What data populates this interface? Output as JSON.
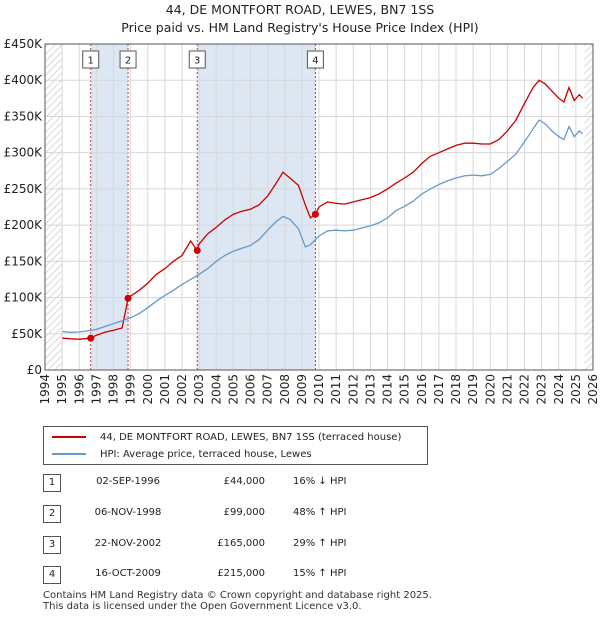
{
  "title_line1": "44, DE MONTFORT ROAD, LEWES, BN7 1SS",
  "title_line2": "Price paid vs. HM Land Registry's House Price Index (HPI)",
  "chart_data": {
    "type": "line",
    "xlim": [
      1994,
      2026
    ],
    "ylim": [
      0,
      450000
    ],
    "x_ticks": [
      "1994",
      "1995",
      "1996",
      "1997",
      "1998",
      "1999",
      "2000",
      "2001",
      "2002",
      "2003",
      "2004",
      "2005",
      "2006",
      "2007",
      "2008",
      "2009",
      "2010",
      "2011",
      "2012",
      "2013",
      "2014",
      "2015",
      "2016",
      "2017",
      "2018",
      "2019",
      "2020",
      "2021",
      "2022",
      "2023",
      "2024",
      "2025",
      "2026"
    ],
    "y_ticks": [
      {
        "value": 0,
        "label": "£0"
      },
      {
        "value": 50000,
        "label": "£50K"
      },
      {
        "value": 100000,
        "label": "£100K"
      },
      {
        "value": 150000,
        "label": "£150K"
      },
      {
        "value": 200000,
        "label": "£200K"
      },
      {
        "value": 250000,
        "label": "£250K"
      },
      {
        "value": 300000,
        "label": "£300K"
      },
      {
        "value": 350000,
        "label": "£350K"
      },
      {
        "value": 400000,
        "label": "£400K"
      },
      {
        "value": 450000,
        "label": "£450K"
      }
    ],
    "shaded_spans": [
      [
        1996.67,
        1998.85
      ],
      [
        2002.89,
        2009.79
      ]
    ],
    "hatched_before": 1995.0,
    "hatched_after": 2025.5,
    "series": [
      {
        "name": "44, DE MONTFORT ROAD, LEWES, BN7 1SS (terraced house)",
        "color": "#cc0000",
        "points": [
          [
            1995.0,
            44000
          ],
          [
            1995.5,
            43000
          ],
          [
            1996.0,
            42500
          ],
          [
            1996.67,
            44000
          ],
          [
            1997.0,
            48000
          ],
          [
            1997.5,
            52000
          ],
          [
            1998.0,
            55000
          ],
          [
            1998.5,
            58000
          ],
          [
            1998.85,
            99000
          ],
          [
            1999.0,
            102000
          ],
          [
            1999.5,
            110000
          ],
          [
            2000.0,
            120000
          ],
          [
            2000.5,
            132000
          ],
          [
            2001.0,
            140000
          ],
          [
            2001.5,
            150000
          ],
          [
            2002.0,
            158000
          ],
          [
            2002.5,
            178000
          ],
          [
            2002.89,
            165000
          ],
          [
            2003.0,
            174000
          ],
          [
            2003.5,
            188000
          ],
          [
            2004.0,
            197000
          ],
          [
            2004.5,
            207000
          ],
          [
            2005.0,
            215000
          ],
          [
            2005.5,
            219000
          ],
          [
            2006.0,
            222000
          ],
          [
            2006.5,
            228000
          ],
          [
            2007.0,
            240000
          ],
          [
            2007.5,
            258000
          ],
          [
            2007.9,
            273000
          ],
          [
            2008.3,
            265000
          ],
          [
            2008.8,
            255000
          ],
          [
            2009.2,
            228000
          ],
          [
            2009.5,
            210000
          ],
          [
            2009.79,
            215000
          ],
          [
            2010.0,
            225000
          ],
          [
            2010.5,
            232000
          ],
          [
            2011.0,
            230000
          ],
          [
            2011.5,
            229000
          ],
          [
            2012.0,
            232000
          ],
          [
            2012.5,
            235000
          ],
          [
            2013.0,
            238000
          ],
          [
            2013.5,
            243000
          ],
          [
            2014.0,
            250000
          ],
          [
            2014.5,
            258000
          ],
          [
            2015.0,
            265000
          ],
          [
            2015.5,
            273000
          ],
          [
            2016.0,
            285000
          ],
          [
            2016.5,
            295000
          ],
          [
            2017.0,
            300000
          ],
          [
            2017.5,
            305000
          ],
          [
            2018.0,
            310000
          ],
          [
            2018.5,
            313000
          ],
          [
            2019.0,
            313000
          ],
          [
            2019.5,
            312000
          ],
          [
            2020.0,
            312000
          ],
          [
            2020.5,
            318000
          ],
          [
            2021.0,
            330000
          ],
          [
            2021.5,
            345000
          ],
          [
            2022.0,
            368000
          ],
          [
            2022.5,
            390000
          ],
          [
            2022.85,
            400000
          ],
          [
            2023.2,
            395000
          ],
          [
            2023.6,
            385000
          ],
          [
            2024.0,
            375000
          ],
          [
            2024.3,
            370000
          ],
          [
            2024.6,
            390000
          ],
          [
            2024.9,
            372000
          ],
          [
            2025.2,
            380000
          ],
          [
            2025.4,
            375000
          ]
        ]
      },
      {
        "name": "HPI: Average price, terraced house, Lewes",
        "color": "#6699cc",
        "points": [
          [
            1995.0,
            53000
          ],
          [
            1995.5,
            52000
          ],
          [
            1996.0,
            52500
          ],
          [
            1996.5,
            54000
          ],
          [
            1997.0,
            56000
          ],
          [
            1997.5,
            60000
          ],
          [
            1998.0,
            64000
          ],
          [
            1998.5,
            68000
          ],
          [
            1999.0,
            72000
          ],
          [
            1999.5,
            78000
          ],
          [
            2000.0,
            86000
          ],
          [
            2000.5,
            95000
          ],
          [
            2001.0,
            103000
          ],
          [
            2001.5,
            110000
          ],
          [
            2002.0,
            118000
          ],
          [
            2002.5,
            125000
          ],
          [
            2003.0,
            132000
          ],
          [
            2003.5,
            140000
          ],
          [
            2004.0,
            150000
          ],
          [
            2004.5,
            158000
          ],
          [
            2005.0,
            164000
          ],
          [
            2005.5,
            168000
          ],
          [
            2006.0,
            172000
          ],
          [
            2006.5,
            180000
          ],
          [
            2007.0,
            193000
          ],
          [
            2007.5,
            205000
          ],
          [
            2007.9,
            212000
          ],
          [
            2008.3,
            208000
          ],
          [
            2008.8,
            195000
          ],
          [
            2009.2,
            170000
          ],
          [
            2009.5,
            173000
          ],
          [
            2010.0,
            185000
          ],
          [
            2010.5,
            192000
          ],
          [
            2011.0,
            193000
          ],
          [
            2011.5,
            192000
          ],
          [
            2012.0,
            193000
          ],
          [
            2012.5,
            196000
          ],
          [
            2013.0,
            199000
          ],
          [
            2013.5,
            203000
          ],
          [
            2014.0,
            210000
          ],
          [
            2014.5,
            220000
          ],
          [
            2015.0,
            226000
          ],
          [
            2015.5,
            233000
          ],
          [
            2016.0,
            243000
          ],
          [
            2016.5,
            250000
          ],
          [
            2017.0,
            256000
          ],
          [
            2017.5,
            261000
          ],
          [
            2018.0,
            265000
          ],
          [
            2018.5,
            268000
          ],
          [
            2019.0,
            269000
          ],
          [
            2019.5,
            268000
          ],
          [
            2020.0,
            270000
          ],
          [
            2020.5,
            278000
          ],
          [
            2021.0,
            288000
          ],
          [
            2021.5,
            298000
          ],
          [
            2022.0,
            315000
          ],
          [
            2022.5,
            333000
          ],
          [
            2022.85,
            345000
          ],
          [
            2023.2,
            340000
          ],
          [
            2023.6,
            330000
          ],
          [
            2024.0,
            322000
          ],
          [
            2024.3,
            318000
          ],
          [
            2024.6,
            336000
          ],
          [
            2024.9,
            322000
          ],
          [
            2025.2,
            330000
          ],
          [
            2025.4,
            326000
          ]
        ]
      }
    ],
    "transactions": [
      {
        "label": "1",
        "x": 1996.67,
        "price": 44000
      },
      {
        "label": "2",
        "x": 1998.85,
        "price": 99000
      },
      {
        "label": "3",
        "x": 2002.89,
        "price": 165000
      },
      {
        "label": "4",
        "x": 2009.79,
        "price": 215000
      }
    ]
  },
  "legend": {
    "property_label": "44, DE MONTFORT ROAD, LEWES, BN7 1SS (terraced house)",
    "hpi_label": "HPI: Average price, terraced house, Lewes"
  },
  "transactions_table": [
    {
      "num": "1",
      "date": "02-SEP-1996",
      "price": "£44,000",
      "hpi": "16% ↓ HPI"
    },
    {
      "num": "2",
      "date": "06-NOV-1998",
      "price": "£99,000",
      "hpi": "48% ↑ HPI"
    },
    {
      "num": "3",
      "date": "22-NOV-2002",
      "price": "£165,000",
      "hpi": "29% ↑ HPI"
    },
    {
      "num": "4",
      "date": "16-OCT-2009",
      "price": "£215,000",
      "hpi": "15% ↑ HPI"
    }
  ],
  "footer": {
    "line1": "Contains HM Land Registry data © Crown copyright and database right 2025.",
    "line2": "This data is licensed under the Open Government Licence v3.0."
  },
  "colors": {
    "property": "#cc0000",
    "hpi": "#6699cc",
    "shade": "#dde6f3",
    "grid": "#d8d8d8"
  }
}
